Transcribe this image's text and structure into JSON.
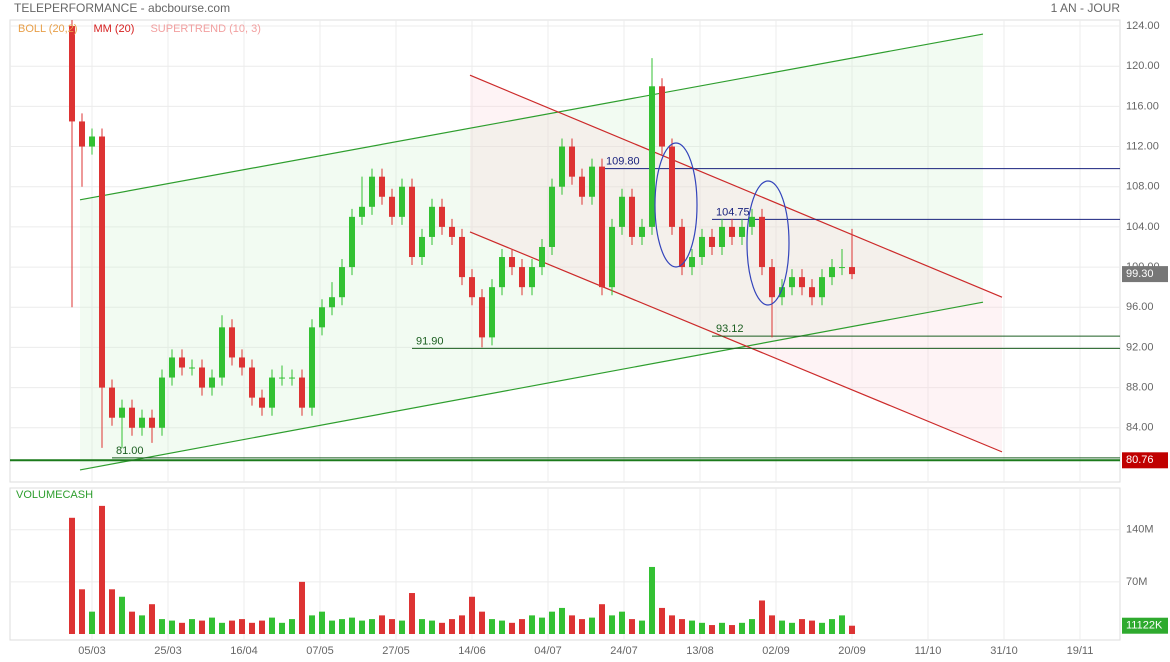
{
  "chart_data": {
    "type": "candlestick",
    "title": "TELEPERFORMANCE - abcbourse.com",
    "period": "1 AN - JOUR",
    "indicators": [
      {
        "name": "BOLL (20,2)",
        "color": "#e8a04a"
      },
      {
        "name": "MM (20)",
        "color": "#d62020"
      },
      {
        "name": "SUPERTREND (10, 3)",
        "color": "#f2a0a0"
      }
    ],
    "volume_title": "VOLUMECASH",
    "xlim": [
      -6.2,
      104.8
    ],
    "xticks": [
      {
        "value": 2,
        "label": "05/03"
      },
      {
        "value": 9.6,
        "label": "25/03"
      },
      {
        "value": 17.2,
        "label": "16/04"
      },
      {
        "value": 24.8,
        "label": "07/05"
      },
      {
        "value": 32.4,
        "label": "27/05"
      },
      {
        "value": 40,
        "label": "14/06"
      },
      {
        "value": 47.6,
        "label": "04/07"
      },
      {
        "value": 55.2,
        "label": "24/07"
      },
      {
        "value": 62.8,
        "label": "13/08"
      },
      {
        "value": 70.4,
        "label": "02/09"
      },
      {
        "value": 78,
        "label": "20/09"
      },
      {
        "value": 85.6,
        "label": "11/10"
      },
      {
        "value": 93.2,
        "label": "31/10"
      },
      {
        "value": 100.8,
        "label": "19/11"
      }
    ],
    "ylim": [
      78.6,
      124.6
    ],
    "yticks": [
      {
        "value": 84,
        "label": "84.00"
      },
      {
        "value": 88,
        "label": "88.00"
      },
      {
        "value": 92,
        "label": "92.00"
      },
      {
        "value": 96,
        "label": "96.00"
      },
      {
        "value": 100,
        "label": "100.00"
      },
      {
        "value": 104,
        "label": "104.00"
      },
      {
        "value": 108,
        "label": "108.00"
      },
      {
        "value": 112,
        "label": "112.00"
      },
      {
        "value": 116,
        "label": "116.00"
      },
      {
        "value": 120,
        "label": "120.00"
      },
      {
        "value": 124,
        "label": "124.00"
      }
    ],
    "up_color": "#33c133",
    "down_color": "#dd3333",
    "candles": [
      [
        124,
        124.6,
        96,
        114.5
      ],
      [
        114.5,
        115.3,
        108,
        112
      ],
      [
        112,
        113.8,
        111.2,
        113
      ],
      [
        113,
        113.8,
        82,
        88
      ],
      [
        88,
        88.8,
        84.2,
        85
      ],
      [
        85,
        86.8,
        82,
        86
      ],
      [
        86,
        86.8,
        83.2,
        84
      ],
      [
        84,
        85.8,
        83.2,
        85
      ],
      [
        85,
        85.8,
        82.5,
        84
      ],
      [
        84,
        89.8,
        83.2,
        89
      ],
      [
        89,
        91.8,
        88.2,
        91
      ],
      [
        91,
        91.8,
        89.2,
        90
      ],
      [
        90,
        90.8,
        89.2,
        90
      ],
      [
        90,
        90.8,
        87.2,
        88
      ],
      [
        88,
        89.8,
        87.2,
        89
      ],
      [
        89,
        95.2,
        88.2,
        94
      ],
      [
        94,
        94.8,
        90.2,
        91
      ],
      [
        91,
        91.8,
        89.2,
        90
      ],
      [
        90,
        90.8,
        86.2,
        87
      ],
      [
        87,
        87.8,
        85.2,
        86
      ],
      [
        86,
        89.8,
        85.2,
        89
      ],
      [
        89,
        90.2,
        88.2,
        89
      ],
      [
        89,
        89.8,
        88.2,
        89
      ],
      [
        89,
        89.8,
        85.2,
        86
      ],
      [
        86,
        94.8,
        85.2,
        94
      ],
      [
        94,
        96.8,
        93.2,
        96
      ],
      [
        96,
        98.5,
        95.2,
        97
      ],
      [
        97,
        100.8,
        96.2,
        100
      ],
      [
        100,
        105.8,
        99.2,
        105
      ],
      [
        105,
        109,
        104.2,
        106
      ],
      [
        106,
        109.8,
        105.2,
        109
      ],
      [
        109,
        109.8,
        106.2,
        107
      ],
      [
        107,
        107.8,
        104.2,
        105
      ],
      [
        105,
        108.8,
        104.2,
        108
      ],
      [
        108,
        108.8,
        100.2,
        101
      ],
      [
        101,
        103.8,
        100.2,
        103
      ],
      [
        103,
        106.8,
        102.2,
        106
      ],
      [
        106,
        106.8,
        103.2,
        104
      ],
      [
        104,
        104.8,
        102.2,
        103
      ],
      [
        103,
        103.8,
        98.2,
        99
      ],
      [
        99,
        99.8,
        96.2,
        97
      ],
      [
        97,
        97.8,
        92,
        93
      ],
      [
        93,
        98.8,
        92.2,
        98
      ],
      [
        98,
        101.8,
        97.2,
        101
      ],
      [
        101,
        101.8,
        99.2,
        100
      ],
      [
        100,
        100.8,
        97.2,
        98
      ],
      [
        98,
        100.8,
        97.2,
        100
      ],
      [
        100,
        102.8,
        99.2,
        102
      ],
      [
        102,
        108.8,
        101.2,
        108
      ],
      [
        108,
        112.8,
        107.2,
        112
      ],
      [
        112,
        112.8,
        108.2,
        109
      ],
      [
        109,
        109.8,
        106.2,
        107
      ],
      [
        107,
        110.8,
        106.2,
        110
      ],
      [
        110,
        110.8,
        97.2,
        98
      ],
      [
        98,
        104.8,
        97.2,
        104
      ],
      [
        104,
        107.8,
        103.2,
        107
      ],
      [
        107,
        107.8,
        102.2,
        103
      ],
      [
        103,
        104.8,
        102.2,
        104
      ],
      [
        104,
        120.8,
        103.2,
        118
      ],
      [
        118,
        118.8,
        111.2,
        112
      ],
      [
        112,
        112.8,
        103.2,
        104
      ],
      [
        104,
        104.8,
        99.2,
        100
      ],
      [
        100,
        101.8,
        99.2,
        101
      ],
      [
        101,
        103.8,
        100.2,
        103
      ],
      [
        103,
        103.8,
        101.2,
        102
      ],
      [
        102,
        104.8,
        101.2,
        104
      ],
      [
        104,
        104.8,
        102.2,
        103
      ],
      [
        103,
        104.8,
        102.2,
        104
      ],
      [
        104,
        105.8,
        103.2,
        105
      ],
      [
        105,
        105.8,
        99.2,
        100
      ],
      [
        100,
        100.8,
        93,
        97
      ],
      [
        97,
        98.8,
        96.2,
        98
      ],
      [
        98,
        99.8,
        97.2,
        99
      ],
      [
        99,
        99.8,
        97.2,
        98
      ],
      [
        98,
        98.8,
        96.2,
        97
      ],
      [
        97,
        99.8,
        96.2,
        99
      ],
      [
        99,
        100.8,
        98.2,
        100
      ],
      [
        100,
        101.8,
        99.2,
        100
      ],
      [
        100,
        103.8,
        98.8,
        99.3
      ]
    ],
    "volumes": [
      156,
      60,
      30,
      172,
      60,
      50,
      30,
      25,
      40,
      20,
      18,
      15,
      20,
      18,
      22,
      15,
      18,
      20,
      15,
      18,
      22,
      15,
      20,
      70,
      25,
      30,
      18,
      20,
      22,
      18,
      20,
      25,
      20,
      18,
      55,
      20,
      18,
      15,
      20,
      25,
      50,
      30,
      20,
      18,
      15,
      20,
      25,
      22,
      30,
      35,
      25,
      20,
      22,
      40,
      25,
      30,
      20,
      18,
      90,
      35,
      25,
      20,
      18,
      15,
      12,
      15,
      12,
      15,
      20,
      45,
      25,
      18,
      15,
      20,
      18,
      15,
      20,
      25,
      11.122
    ],
    "volume_ylim": [
      0,
      196
    ],
    "volume_yticks": [
      {
        "value": 70,
        "label": "70M"
      },
      {
        "value": 140,
        "label": "140M"
      }
    ],
    "volume_last": {
      "value": 11.122,
      "label": "11122K"
    },
    "last_price": {
      "value": 99.3,
      "label": "99.30"
    },
    "support": {
      "value": 80.76,
      "label": "80.76"
    },
    "levels": [
      {
        "value": 109.8,
        "label": "109.80",
        "start": 53,
        "color": "#1a237e"
      },
      {
        "value": 104.75,
        "label": "104.75",
        "start": 64,
        "color": "#1a237e"
      },
      {
        "value": 93.12,
        "label": "93.12",
        "start": 64,
        "color": "#1b5e20"
      },
      {
        "value": 91.9,
        "label": "91.90",
        "start": 34,
        "color": "#1b5e20"
      },
      {
        "value": 81,
        "label": "81.00",
        "start": 4,
        "color": "#1b5e20"
      }
    ],
    "trendlines": [
      {
        "color": "#2e9e2e",
        "points": [
          [
            0.8,
            106.7
          ],
          [
            91.1,
            123.2
          ]
        ]
      },
      {
        "color": "#2e9e2e",
        "points": [
          [
            0.8,
            79.8
          ],
          [
            91.1,
            96.5
          ]
        ]
      },
      {
        "color": "#cc2a2a",
        "points": [
          [
            39.8,
            119.1
          ],
          [
            93,
            97
          ]
        ]
      },
      {
        "color": "#cc2a2a",
        "points": [
          [
            39.8,
            103.5
          ],
          [
            93,
            81.6
          ]
        ]
      }
    ]
  }
}
